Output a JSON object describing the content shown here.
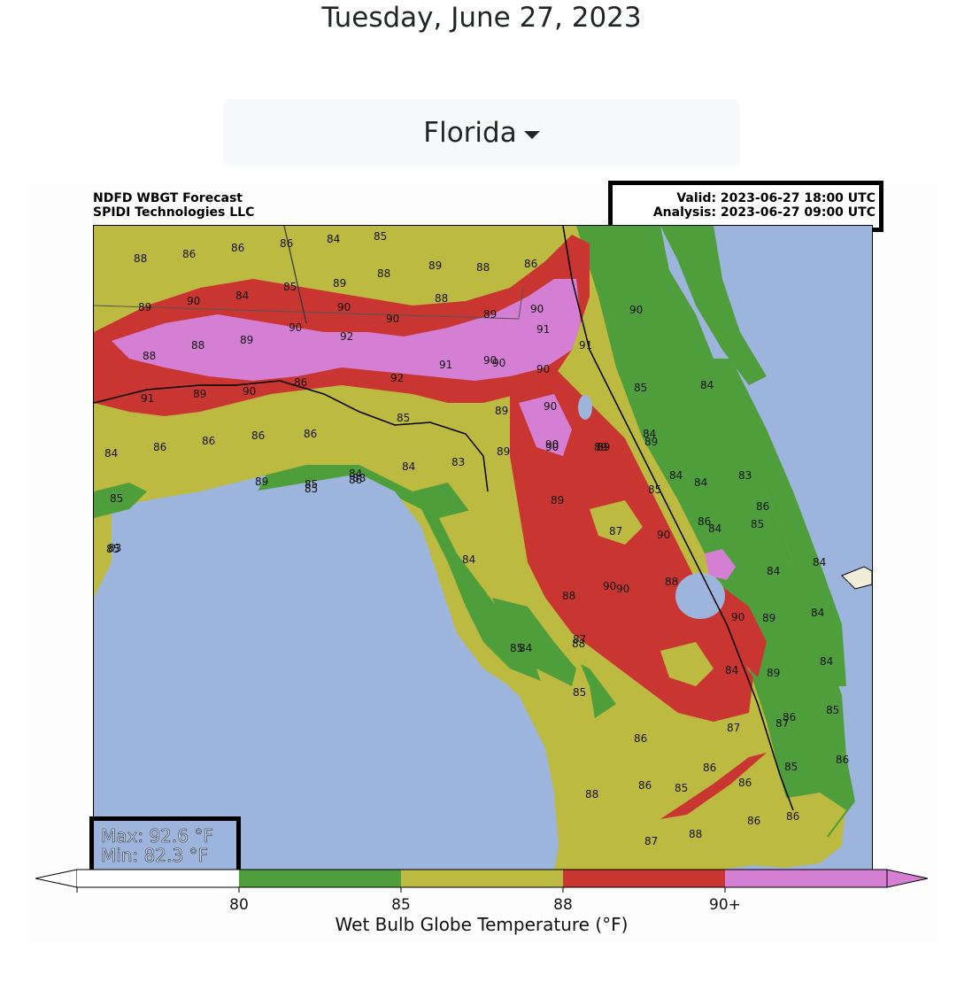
{
  "page": {
    "date": "Tuesday, June 27, 2023",
    "region_selector": "Florida"
  },
  "map": {
    "title_line1": "NDFD WBGT Forecast",
    "title_line2": "SPIDI Technologies LLC",
    "valid": "Valid: 2023-06-27 18:00 UTC",
    "analysis": "Analysis: 2023-06-27 09:00 UTC",
    "max": "Max: 92.6 °F",
    "min": "Min: 82.3 °F",
    "colors": {
      "water": "#9db4dc",
      "below80": "#ffffff",
      "c80_85": "#4f9e3c",
      "c85_88": "#bdba42",
      "c88_90": "#c93531",
      "c90plus": "#d47ed4"
    },
    "contour_labels": [
      "88",
      "86",
      "86",
      "86",
      "84",
      "85",
      "89",
      "90",
      "84",
      "85",
      "89",
      "88",
      "89",
      "88",
      "86",
      "88",
      "88",
      "89",
      "90",
      "90",
      "90",
      "88",
      "89",
      "90",
      "91",
      "90",
      "91",
      "89",
      "90",
      "86",
      "92",
      "92",
      "91",
      "90",
      "90",
      "90",
      "91",
      "85",
      "83",
      "89",
      "90",
      "89",
      "89",
      "90",
      "85",
      "84",
      "83",
      "84",
      "86",
      "86",
      "86",
      "86",
      "86",
      "85",
      "85",
      "84",
      "83",
      "84",
      "90",
      "89",
      "84",
      "84",
      "85",
      "86",
      "85",
      "85",
      "89",
      "88",
      "89",
      "84",
      "86",
      "85",
      "84",
      "89",
      "87",
      "90",
      "84",
      "90",
      "90",
      "84",
      "84",
      "88",
      "90",
      "88",
      "89",
      "84",
      "85",
      "88",
      "84",
      "84",
      "89",
      "87",
      "84",
      "85",
      "87",
      "87",
      "86",
      "85",
      "85",
      "86",
      "86",
      "86",
      "85",
      "86",
      "88",
      "86",
      "87",
      "88",
      "86",
      "86"
    ]
  },
  "colorbar": {
    "ticks": [
      "80",
      "85",
      "88",
      "90+"
    ],
    "label": "Wet Bulb Globe Temperature (°F)"
  }
}
